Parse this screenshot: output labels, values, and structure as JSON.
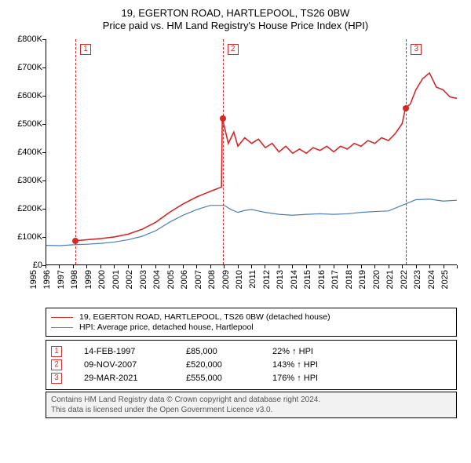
{
  "title_line1": "19, EGERTON ROAD, HARTLEPOOL, TS26 0BW",
  "title_line2": "Price paid vs. HM Land Registry's House Price Index (HPI)",
  "chart": {
    "type": "line",
    "background_color": "#ffffff",
    "axis_color": "#000000",
    "ylim": [
      0,
      800000
    ],
    "ytick_step": 100000,
    "ytick_labels": [
      "£0",
      "£100K",
      "£200K",
      "£300K",
      "£400K",
      "£500K",
      "£600K",
      "£700K",
      "£800K"
    ],
    "xlim": [
      1995,
      2025
    ],
    "xtick_step": 1,
    "xtick_labels": [
      "1995",
      "1996",
      "1997",
      "1998",
      "1999",
      "2000",
      "2001",
      "2002",
      "2003",
      "2004",
      "2005",
      "2006",
      "2007",
      "2008",
      "2009",
      "2010",
      "2011",
      "2012",
      "2013",
      "2014",
      "2015",
      "2016",
      "2017",
      "2018",
      "2019",
      "2020",
      "2021",
      "2022",
      "2023",
      "2024",
      "2025"
    ],
    "label_fontsize": 11,
    "series": [
      {
        "name": "price_paid",
        "color": "#d62728",
        "line_width": 1.6,
        "points": [
          [
            1997.12,
            85000
          ],
          [
            1997.3,
            85000
          ],
          [
            1998,
            88000
          ],
          [
            1999,
            92000
          ],
          [
            2000,
            98000
          ],
          [
            2001,
            108000
          ],
          [
            2002,
            125000
          ],
          [
            2003,
            150000
          ],
          [
            2004,
            185000
          ],
          [
            2005,
            215000
          ],
          [
            2006,
            240000
          ],
          [
            2007,
            260000
          ],
          [
            2007.8,
            275000
          ],
          [
            2007.86,
            520000
          ],
          [
            2008.3,
            430000
          ],
          [
            2008.7,
            470000
          ],
          [
            2009,
            420000
          ],
          [
            2009.5,
            450000
          ],
          [
            2010,
            430000
          ],
          [
            2010.5,
            445000
          ],
          [
            2011,
            415000
          ],
          [
            2011.5,
            430000
          ],
          [
            2012,
            400000
          ],
          [
            2012.5,
            420000
          ],
          [
            2013,
            395000
          ],
          [
            2013.5,
            410000
          ],
          [
            2014,
            395000
          ],
          [
            2014.5,
            415000
          ],
          [
            2015,
            405000
          ],
          [
            2015.5,
            420000
          ],
          [
            2016,
            400000
          ],
          [
            2016.5,
            420000
          ],
          [
            2017,
            410000
          ],
          [
            2017.5,
            430000
          ],
          [
            2018,
            420000
          ],
          [
            2018.5,
            440000
          ],
          [
            2019,
            430000
          ],
          [
            2019.5,
            450000
          ],
          [
            2020,
            440000
          ],
          [
            2020.5,
            465000
          ],
          [
            2021,
            500000
          ],
          [
            2021.24,
            555000
          ],
          [
            2021.6,
            570000
          ],
          [
            2022,
            620000
          ],
          [
            2022.5,
            660000
          ],
          [
            2023,
            680000
          ],
          [
            2023.5,
            630000
          ],
          [
            2024,
            620000
          ],
          [
            2024.5,
            595000
          ],
          [
            2025,
            590000
          ]
        ]
      },
      {
        "name": "hpi",
        "color": "#4a7fb8",
        "line_width": 1.2,
        "points": [
          [
            1995,
            68000
          ],
          [
            1996,
            67000
          ],
          [
            1997,
            70000
          ],
          [
            1998,
            72000
          ],
          [
            1999,
            75000
          ],
          [
            2000,
            80000
          ],
          [
            2001,
            88000
          ],
          [
            2002,
            100000
          ],
          [
            2003,
            120000
          ],
          [
            2004,
            150000
          ],
          [
            2005,
            175000
          ],
          [
            2006,
            195000
          ],
          [
            2007,
            210000
          ],
          [
            2008,
            210000
          ],
          [
            2008.5,
            195000
          ],
          [
            2009,
            185000
          ],
          [
            2009.5,
            192000
          ],
          [
            2010,
            195000
          ],
          [
            2010.5,
            190000
          ],
          [
            2011,
            185000
          ],
          [
            2012,
            178000
          ],
          [
            2013,
            175000
          ],
          [
            2014,
            178000
          ],
          [
            2015,
            180000
          ],
          [
            2016,
            178000
          ],
          [
            2017,
            180000
          ],
          [
            2018,
            185000
          ],
          [
            2019,
            188000
          ],
          [
            2020,
            190000
          ],
          [
            2021,
            210000
          ],
          [
            2022,
            230000
          ],
          [
            2023,
            232000
          ],
          [
            2024,
            225000
          ],
          [
            2025,
            228000
          ]
        ]
      }
    ],
    "event_lines": [
      {
        "x": 1997.12,
        "num": "1",
        "dot_y": 85000
      },
      {
        "x": 2007.86,
        "num": "2",
        "dot_y": 520000
      },
      {
        "x": 2021.24,
        "num": "3",
        "dot_y": 555000
      }
    ],
    "event_line_color": "#d62728",
    "marker_box_border": "#d62728",
    "data_point_color": "#d62728"
  },
  "legend": {
    "items": [
      {
        "color": "#d62728",
        "width": 1.6,
        "label": "19, EGERTON ROAD, HARTLEPOOL, TS26 0BW (detached house)"
      },
      {
        "color": "#4a7fb8",
        "width": 1.2,
        "label": "HPI: Average price, detached house, Hartlepool"
      }
    ]
  },
  "sales": [
    {
      "num": "1",
      "date": "14-FEB-1997",
      "price": "£85,000",
      "pct": "22% ↑ HPI"
    },
    {
      "num": "2",
      "date": "09-NOV-2007",
      "price": "£520,000",
      "pct": "143% ↑ HPI"
    },
    {
      "num": "3",
      "date": "29-MAR-2021",
      "price": "£555,000",
      "pct": "176% ↑ HPI"
    }
  ],
  "footer_line1": "Contains HM Land Registry data © Crown copyright and database right 2024.",
  "footer_line2": "This data is licensed under the Open Government Licence v3.0."
}
